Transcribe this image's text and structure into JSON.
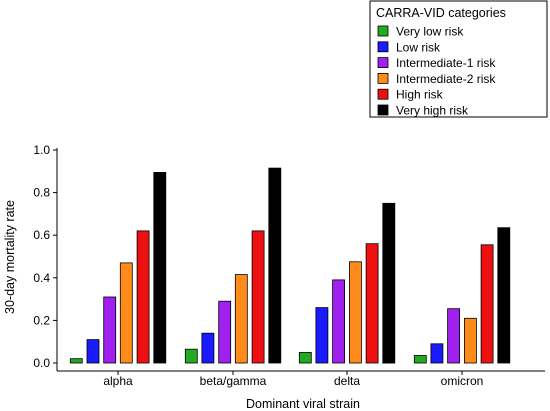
{
  "chart_data": {
    "type": "bar",
    "xlabel": "Dominant viral strain",
    "ylabel": "30-day mortality rate",
    "ylim": [
      0,
      1.0
    ],
    "yticks": [
      "0.0",
      "0.2",
      "0.4",
      "0.6",
      "0.8",
      "1.0"
    ],
    "grid": false,
    "legend_title": "CARRA-VID categories",
    "legend_position": "top-right",
    "categories": [
      "alpha",
      "beta/gamma",
      "delta",
      "omicron"
    ],
    "series": [
      {
        "name": "Very low risk",
        "color": "#22aa22",
        "values": [
          0.02,
          0.065,
          0.05,
          0.035
        ]
      },
      {
        "name": "Low risk",
        "color": "#1a1aff",
        "values": [
          0.11,
          0.14,
          0.26,
          0.09
        ]
      },
      {
        "name": "Intermediate-1 risk",
        "color": "#a020f0",
        "values": [
          0.31,
          0.29,
          0.39,
          0.255
        ]
      },
      {
        "name": "Intermediate-2 risk",
        "color": "#ff8c1a",
        "values": [
          0.47,
          0.415,
          0.475,
          0.21
        ]
      },
      {
        "name": "High risk",
        "color": "#ee1111",
        "values": [
          0.62,
          0.62,
          0.56,
          0.555
        ]
      },
      {
        "name": "Very high risk",
        "color": "#000000",
        "values": [
          0.895,
          0.915,
          0.75,
          0.635
        ]
      }
    ]
  }
}
